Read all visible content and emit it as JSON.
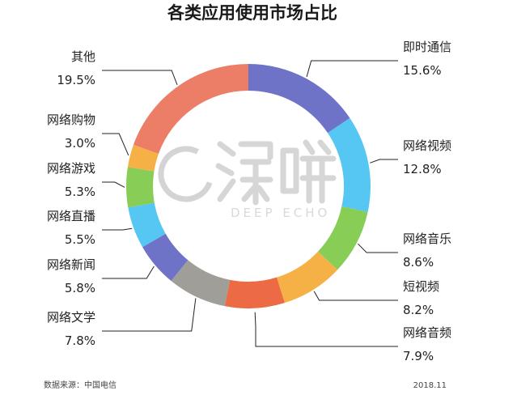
{
  "chart_data": {
    "type": "pie",
    "title": "各类应用使用市场占比",
    "categories": [
      "即时通信",
      "网络视频",
      "网络音乐",
      "短视频",
      "网络音频",
      "网络文学",
      "网络新闻",
      "网络直播",
      "网络游戏",
      "网络购物",
      "其他"
    ],
    "values": [
      15.6,
      12.8,
      8.6,
      8.2,
      7.9,
      7.8,
      5.8,
      5.5,
      5.3,
      3.0,
      19.5
    ],
    "value_labels": [
      "15.6%",
      "12.8%",
      "8.6%",
      "8.2%",
      "7.9%",
      "7.8%",
      "5.8%",
      "5.5%",
      "5.3%",
      "3.0%",
      "19.5%"
    ],
    "colors": [
      "#6f73c8",
      "#55c7f2",
      "#88cd55",
      "#f5b146",
      "#ec6b45",
      "#a09e98",
      "#6f73c8",
      "#55c7f2",
      "#88cd55",
      "#f5b146",
      "#ec7e67"
    ],
    "donut": true,
    "legend": "none"
  },
  "footer": {
    "source": "数据来源：中国电信",
    "date": "2018.11"
  },
  "watermark": {
    "text": "DEEP ECHO"
  }
}
